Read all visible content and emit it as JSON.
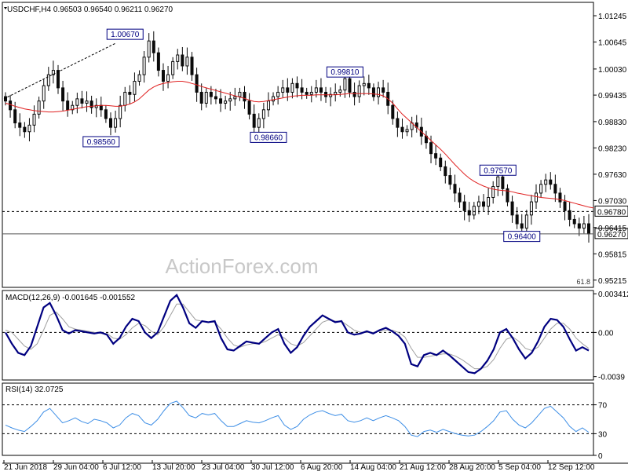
{
  "header": {
    "symbol": "USDCHF,H4",
    "open": "0.96503",
    "high": "0.96540",
    "low": "0.96211",
    "close": "0.96270"
  },
  "watermark": "ActionForex.com",
  "colors": {
    "background": "#ffffff",
    "candle": "#0a0a0a",
    "moving_average": "#e02020",
    "macd_line": "#000080",
    "signal_line": "#a0a0a0",
    "rsi_line": "#3d8ee6",
    "label_border": "#000080",
    "label_text": "#000080",
    "watermark": "#c8c8c8"
  },
  "chart_data": [
    {
      "panel": "price",
      "type": "line",
      "title": "USDCHF,H4",
      "y_ticks": [
        "1.01245",
        "1.00645",
        "1.00030",
        "0.99435",
        "0.98830",
        "0.98230",
        "0.97630",
        "0.97030",
        "0.96415",
        "0.95815",
        "0.95215"
      ],
      "x_ticks": [
        "21 Jun 2018",
        "29 Jun 04:00",
        "6 Jul 12:00",
        "13 Jul 20:00",
        "23 Jul 04:00",
        "30 Jul 12:00",
        "6 Aug 20:00",
        "14 Aug 04:00",
        "21 Aug 12:00",
        "28 Aug 20:00",
        "5 Sep 04:00",
        "12 Sep 12:00"
      ],
      "ylim": [
        0.9505,
        1.0155
      ],
      "close_series": [
        0.993,
        0.991,
        0.988,
        0.987,
        0.986,
        0.9875,
        0.99,
        0.993,
        0.9965,
        0.999,
        1.0,
        0.996,
        0.993,
        0.991,
        0.992,
        0.9935,
        0.9925,
        0.993,
        0.9915,
        0.992,
        0.991,
        0.989,
        0.987,
        0.989,
        0.992,
        0.995,
        0.9945,
        0.9975,
        0.999,
        1.003,
        1.0067,
        1.004,
        1.0,
        0.9975,
        0.999,
        1.002,
        1.0035,
        1.001,
        1.003,
        0.999,
        0.995,
        0.9925,
        0.995,
        0.994,
        0.9935,
        0.9925,
        0.993,
        0.9935,
        0.994,
        0.995,
        0.993,
        0.99,
        0.987,
        0.989,
        0.991,
        0.993,
        0.994,
        0.995,
        0.996,
        0.995,
        0.997,
        0.996,
        0.995,
        0.9945,
        0.995,
        0.996,
        0.995,
        0.994,
        0.9945,
        0.995,
        0.9955,
        0.9981,
        0.995,
        0.994,
        0.9965,
        0.997,
        0.996,
        0.994,
        0.996,
        0.995,
        0.992,
        0.989,
        0.987,
        0.986,
        0.9865,
        0.988,
        0.987,
        0.985,
        0.9835,
        0.981,
        0.98,
        0.978,
        0.976,
        0.974,
        0.972,
        0.97,
        0.968,
        0.967,
        0.969,
        0.97,
        0.969,
        0.971,
        0.9735,
        0.9757,
        0.973,
        0.97,
        0.967,
        0.965,
        0.964,
        0.967,
        0.97,
        0.972,
        0.974,
        0.975,
        0.974,
        0.972,
        0.97,
        0.968,
        0.966,
        0.965,
        0.964,
        0.965,
        0.9627
      ],
      "ma_series": [
        0.9925,
        0.9922,
        0.9918,
        0.9915,
        0.9912,
        0.991,
        0.9908,
        0.9907,
        0.9906,
        0.9905,
        0.9905,
        0.9906,
        0.9907,
        0.9909,
        0.9911,
        0.9913,
        0.9915,
        0.9917,
        0.9918,
        0.9919,
        0.992,
        0.992,
        0.9919,
        0.9918,
        0.9918,
        0.992,
        0.9923,
        0.9928,
        0.9935,
        0.9945,
        0.9955,
        0.9962,
        0.9967,
        0.997,
        0.9972,
        0.9974,
        0.9975,
        0.9975,
        0.9973,
        0.997,
        0.9967,
        0.9963,
        0.996,
        0.9957,
        0.9954,
        0.9951,
        0.9948,
        0.9945,
        0.9942,
        0.9939,
        0.9936,
        0.9932,
        0.9929,
        0.9928,
        0.9929,
        0.9931,
        0.9933,
        0.9935,
        0.9937,
        0.9939,
        0.9941,
        0.9942,
        0.9943,
        0.9943,
        0.9943,
        0.9944,
        0.9944,
        0.9944,
        0.9944,
        0.9944,
        0.9945,
        0.9946,
        0.9947,
        0.9947,
        0.9947,
        0.9947,
        0.9947,
        0.9946,
        0.9945,
        0.9942,
        0.9935,
        0.9925,
        0.9912,
        0.99,
        0.989,
        0.988,
        0.987,
        0.986,
        0.985,
        0.984,
        0.983,
        0.982,
        0.9809,
        0.9797,
        0.9785,
        0.9774,
        0.9763,
        0.9754,
        0.9747,
        0.9741,
        0.9736,
        0.9732,
        0.9729,
        0.9727,
        0.9726,
        0.9725,
        0.9723,
        0.972,
        0.9718,
        0.9716,
        0.9714,
        0.9712,
        0.971,
        0.9709,
        0.9708,
        0.9707,
        0.9705,
        0.9703,
        0.97,
        0.9697,
        0.9694,
        0.9691,
        0.9688,
        0.9686
      ],
      "dotted_lines": [
        {
          "y": 0.9678,
          "label": "0.96780"
        },
        {
          "y": 0.9627,
          "label": "0.96270"
        }
      ],
      "annotations": [
        {
          "text": "1.00670",
          "x_index": 25,
          "y": 1.0067
        },
        {
          "text": "0.98560",
          "x_index": 20,
          "y": 0.9856
        },
        {
          "text": "0.98660",
          "x_index": 55,
          "y": 0.9866
        },
        {
          "text": "0.99810",
          "x_index": 71,
          "y": 0.9981
        },
        {
          "text": "0.97570",
          "x_index": 103,
          "y": 0.9757
        },
        {
          "text": "0.96400",
          "x_index": 108,
          "y": 0.964
        }
      ],
      "fib_label": "61.8"
    },
    {
      "panel": "macd",
      "type": "line",
      "title": "MACD(12,26,9) -0.001645 -0.001552",
      "y_ticks": [
        "0.003412",
        "0.00",
        "-0.0039"
      ],
      "ylim": [
        -0.0042,
        0.0037
      ],
      "series": [
        {
          "values": [
            0.0,
            -0.001,
            -0.0018,
            -0.002,
            -0.0012,
            0.0005,
            0.0022,
            0.0026,
            0.0015,
            0.0002,
            -0.0001,
            0.0002,
            0.0001,
            0.0,
            -0.0001,
            0.0,
            -0.0002,
            -0.001,
            -0.0005,
            0.0005,
            0.0012,
            0.001,
            0.0,
            -0.0005,
            0.0,
            0.0014,
            0.0028,
            0.0033,
            0.0022,
            0.0008,
            0.0004,
            0.001,
            0.0009,
            0.001,
            -0.0005,
            -0.0015,
            -0.0016,
            -0.0012,
            -0.0008,
            -0.0009,
            -0.001,
            -0.0005,
            0.0,
            0.0003,
            -0.001,
            -0.0018,
            -0.0013,
            -0.0003,
            0.0005,
            0.001,
            0.0015,
            0.0012,
            0.0009,
            0.001,
            0.0,
            -0.0002,
            -0.0001,
            0.0001,
            -0.0001,
            0.0002,
            0.0004,
            0.0001,
            -0.0003,
            -0.001,
            -0.0028,
            -0.003,
            -0.002,
            -0.0018,
            -0.002,
            -0.0016,
            -0.002,
            -0.0025,
            -0.003,
            -0.0035,
            -0.0036,
            -0.0032,
            -0.0025,
            -0.0015,
            0.0,
            0.0003,
            -0.0005,
            -0.0015,
            -0.0023,
            -0.0018,
            -0.0008,
            0.0005,
            0.0012,
            0.0011,
            0.0005,
            -0.0006,
            -0.0016,
            -0.0013,
            -0.0016
          ]
        },
        {
          "values": [
            0.0002,
            0.0,
            -0.0006,
            -0.0012,
            -0.0015,
            -0.001,
            0.0002,
            0.0015,
            0.0018,
            0.0012,
            0.0005,
            0.0003,
            0.0002,
            0.0001,
            0.0,
            -0.0001,
            -0.0001,
            -0.0005,
            -0.0006,
            -0.0002,
            0.0004,
            0.0008,
            0.0006,
            0.0001,
            -0.0002,
            0.0005,
            0.0015,
            0.0025,
            0.0025,
            0.0018,
            0.0011,
            0.001,
            0.0009,
            0.0009,
            0.0003,
            -0.0005,
            -0.0011,
            -0.0013,
            -0.0011,
            -0.001,
            -0.001,
            -0.0008,
            -0.0005,
            -0.0002,
            -0.0005,
            -0.001,
            -0.0012,
            -0.0009,
            -0.0003,
            0.0003,
            0.0009,
            0.0011,
            0.001,
            0.001,
            0.0006,
            0.0002,
            0.0,
            0.0,
            0.0,
            0.0001,
            0.0002,
            0.0002,
            0.0,
            -0.0004,
            -0.0014,
            -0.0022,
            -0.0022,
            -0.0021,
            -0.002,
            -0.0019,
            -0.0019,
            -0.0021,
            -0.0024,
            -0.0028,
            -0.0032,
            -0.0032,
            -0.003,
            -0.0024,
            -0.0014,
            -0.0006,
            -0.0004,
            -0.0008,
            -0.0014,
            -0.0016,
            -0.0013,
            -0.0005,
            0.0003,
            0.0008,
            0.0008,
            0.0003,
            -0.0005,
            -0.001,
            -0.0014
          ]
        }
      ]
    },
    {
      "panel": "rsi",
      "type": "line",
      "title": "RSI(14) 32.0725",
      "y_ticks": [
        "70",
        "30",
        "0"
      ],
      "ylim": [
        0,
        100
      ],
      "levels": [
        70,
        30
      ],
      "values": [
        42,
        38,
        35,
        33,
        40,
        48,
        60,
        65,
        55,
        45,
        48,
        52,
        47,
        44,
        50,
        48,
        45,
        38,
        42,
        52,
        58,
        55,
        45,
        42,
        50,
        62,
        72,
        75,
        66,
        55,
        52,
        58,
        56,
        58,
        48,
        40,
        40,
        44,
        48,
        46,
        45,
        48,
        52,
        55,
        42,
        36,
        40,
        50,
        56,
        60,
        62,
        58,
        55,
        57,
        48,
        46,
        48,
        52,
        48,
        52,
        55,
        52,
        48,
        40,
        28,
        26,
        33,
        35,
        32,
        36,
        33,
        30,
        28,
        27,
        28,
        33,
        40,
        48,
        60,
        62,
        50,
        42,
        38,
        45,
        55,
        65,
        68,
        60,
        52,
        40,
        33,
        38,
        32
      ]
    }
  ],
  "x_axis": {
    "labels": [
      "21 Jun 2018",
      "29 Jun 04:00",
      "6 Jul 12:00",
      "13 Jul 20:00",
      "23 Jul 04:00",
      "30 Jul 12:00",
      "6 Aug 20:00",
      "14 Aug 04:00",
      "21 Aug 12:00",
      "28 Aug 20:00",
      "5 Sep 04:00",
      "12 Sep 12:00"
    ]
  }
}
